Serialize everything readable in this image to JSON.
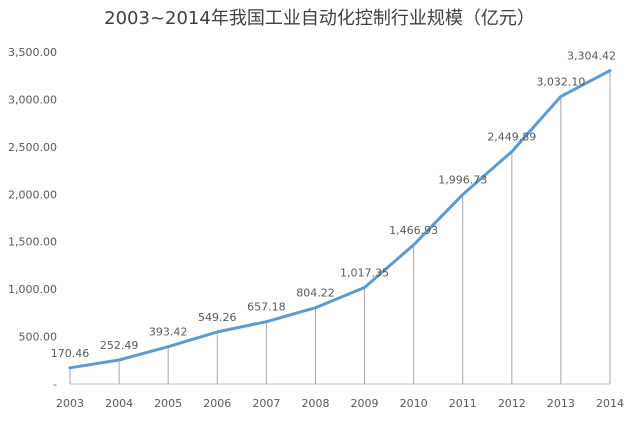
{
  "chart_data": {
    "type": "line",
    "title": "2003~2014年我国工业自动化控制行业规模（亿元）",
    "categories": [
      "2003",
      "2004",
      "2005",
      "2006",
      "2007",
      "2008",
      "2009",
      "2010",
      "2011",
      "2012",
      "2013",
      "2014"
    ],
    "series": [
      {
        "values": [
          170.46,
          252.49,
          393.42,
          549.26,
          657.18,
          804.22,
          1017.35,
          1466.93,
          1996.73,
          2449.89,
          3032.1,
          3304.42
        ],
        "labels": [
          "170.46",
          "252.49",
          "393.42",
          "549.26",
          "657.18",
          "804.22",
          "1,017.35",
          "1,466.93",
          "1,996.73",
          "2,449.89",
          "3,032.10",
          "3,304.42"
        ],
        "color": "#5b9bd5"
      }
    ],
    "yticks": [
      "-",
      "500.00",
      "1,000.00",
      "1,500.00",
      "2,000.00",
      "2,500.00",
      "3,000.00",
      "3,500.00"
    ],
    "ylim": [
      0,
      3500
    ],
    "grid": false,
    "drop_lines": true,
    "legend": "none"
  }
}
